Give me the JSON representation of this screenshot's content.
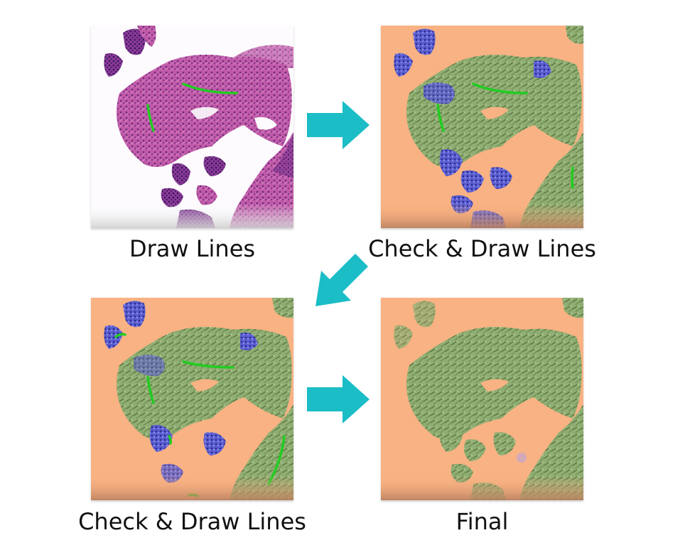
{
  "panels": [
    {
      "id": "step1",
      "caption": "Draw Lines",
      "kind": "he-stain-with-annotation-lines"
    },
    {
      "id": "step2",
      "caption": "Check & Draw Lines",
      "kind": "segmentation-overlay"
    },
    {
      "id": "step3",
      "caption": "Check & Draw Lines",
      "kind": "segmentation-overlay"
    },
    {
      "id": "step4",
      "caption": "Final",
      "kind": "segmentation-result"
    }
  ],
  "arrows": [
    {
      "from": "step1",
      "to": "step2",
      "direction": "right"
    },
    {
      "from": "step2",
      "to": "step3",
      "direction": "down-left"
    },
    {
      "from": "step3",
      "to": "step4",
      "direction": "right"
    }
  ],
  "colors": {
    "arrow": "#1BBDC6",
    "background_class": "#F9B283",
    "tissue_class": "#8FAE73",
    "nuclei_class": "#4B4FC4",
    "annotation_line": "#22CC22",
    "he_stain": "#B04C9E"
  }
}
